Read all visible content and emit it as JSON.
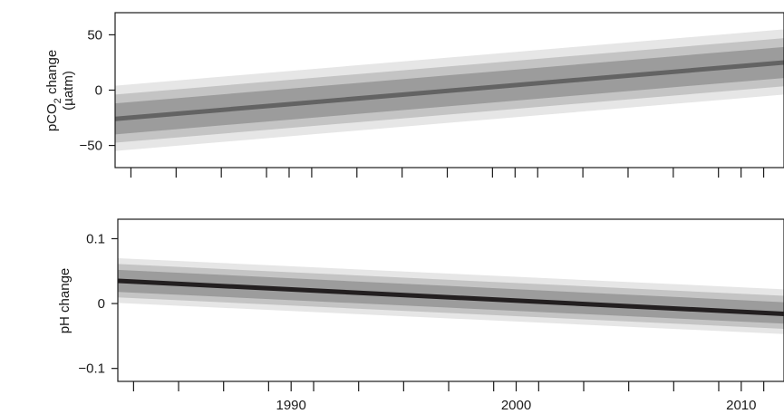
{
  "chart_data": [
    {
      "type": "line",
      "ylabel_line1": "pCO",
      "ylabel_sub": "2",
      "ylabel_line1_suffix": " change",
      "ylabel_line2": "(µatm)",
      "x": [
        1982.3,
        2011.9
      ],
      "y": [
        -26,
        25
      ],
      "band_inner": [
        [
          -40,
          -12
        ],
        [
          11,
          39
        ]
      ],
      "band_outer": [
        [
          -55,
          4
        ],
        [
          -4,
          55
        ]
      ],
      "ylim": [
        -70,
        70
      ],
      "yticks": [
        -50,
        0,
        50
      ],
      "ytick_labels": [
        "−50",
        "0",
        "50"
      ],
      "line_color": "#636363",
      "band_color_inner": "#8a8a8a",
      "band_color_outer": "#e6e6e6"
    },
    {
      "type": "line",
      "ylabel": "pH change",
      "x": [
        1982.3,
        2011.9
      ],
      "y": [
        0.035,
        -0.016
      ],
      "band_inner": [
        [
          0.018,
          0.052
        ],
        [
          -0.031,
          0.002
        ]
      ],
      "band_outer": [
        [
          0.001,
          0.07
        ],
        [
          -0.047,
          0.022
        ]
      ],
      "ylim": [
        -0.12,
        0.13
      ],
      "yticks": [
        -0.1,
        0,
        0.1
      ],
      "ytick_labels": [
        "−0.1",
        "0",
        "0.1"
      ],
      "line_color": "#231f20",
      "band_color_inner": "#8a8a8a",
      "band_color_outer": "#e6e6e6"
    }
  ],
  "x_axis": {
    "xlim": [
      1982.3,
      2011.9
    ],
    "major_ticks": [
      1990,
      2000,
      2010
    ],
    "major_labels": [
      "1990",
      "2000",
      "2010"
    ],
    "minor_ticks": [
      1983,
      1985,
      1987,
      1989,
      1991,
      1993,
      1995,
      1997,
      1999,
      2001,
      2003,
      2005,
      2007,
      2009,
      2011
    ]
  }
}
